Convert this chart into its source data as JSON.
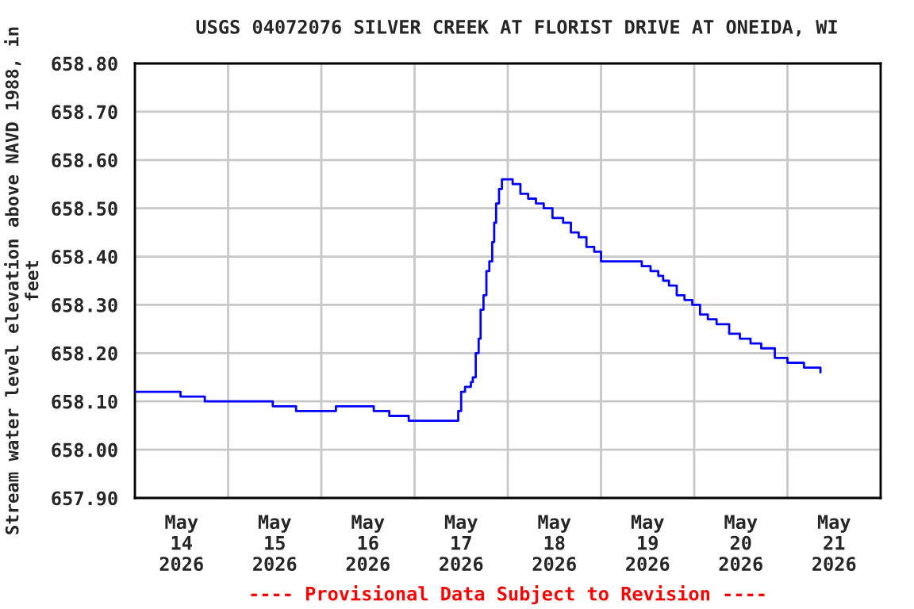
{
  "chart_data": {
    "type": "step",
    "title": "USGS 04072076 SILVER CREEK AT FLORIST DRIVE AT ONEIDA, WI",
    "ylabel": "Stream water level elevation above NAVD 1988, in feet",
    "annotations": [
      "---- Provisional Data Subject to Revision ----"
    ],
    "x": [
      "2026-05-14T00:00",
      "2026-05-14T11:15",
      "2026-05-14T11:45",
      "2026-05-14T17:45",
      "2026-05-14T18:00",
      "2026-05-15T10:30",
      "2026-05-15T11:30",
      "2026-05-15T17:15",
      "2026-05-15T17:30",
      "2026-05-16T03:30",
      "2026-05-16T03:45",
      "2026-05-16T13:15",
      "2026-05-16T13:30",
      "2026-05-16T17:15",
      "2026-05-16T17:30",
      "2026-05-16T22:15",
      "2026-05-16T22:30",
      "2026-05-17T11:00",
      "2026-05-17T11:15",
      "2026-05-17T12:00",
      "2026-05-17T13:00",
      "2026-05-17T14:30",
      "2026-05-17T15:00",
      "2026-05-17T15:45",
      "2026-05-17T16:30",
      "2026-05-17T17:00",
      "2026-05-17T17:45",
      "2026-05-17T18:30",
      "2026-05-17T19:15",
      "2026-05-17T20:00",
      "2026-05-17T20:30",
      "2026-05-17T21:00",
      "2026-05-17T21:45",
      "2026-05-17T22:30",
      "2026-05-18T00:15",
      "2026-05-18T01:15",
      "2026-05-18T03:15",
      "2026-05-18T05:15",
      "2026-05-18T07:15",
      "2026-05-18T09:15",
      "2026-05-18T11:30",
      "2026-05-18T14:15",
      "2026-05-18T16:15",
      "2026-05-18T18:15",
      "2026-05-18T20:15",
      "2026-05-18T22:15",
      "2026-05-19T00:00",
      "2026-05-19T09:15",
      "2026-05-19T10:30",
      "2026-05-19T12:45",
      "2026-05-19T14:45",
      "2026-05-19T16:00",
      "2026-05-19T17:30",
      "2026-05-19T19:30",
      "2026-05-19T21:30",
      "2026-05-19T23:30",
      "2026-05-20T01:30",
      "2026-05-20T03:30",
      "2026-05-20T05:45",
      "2026-05-20T09:00",
      "2026-05-20T11:45",
      "2026-05-20T14:30",
      "2026-05-20T17:15",
      "2026-05-20T20:45",
      "2026-05-21T00:00",
      "2026-05-21T04:15",
      "2026-05-21T08:15",
      "2026-05-21T08:30"
    ],
    "series": [
      {
        "color": "#0000ff",
        "values": [
          658.12,
          658.12,
          658.11,
          658.11,
          658.1,
          658.1,
          658.09,
          658.09,
          658.08,
          658.08,
          658.09,
          658.09,
          658.08,
          658.08,
          658.07,
          658.07,
          658.06,
          658.06,
          658.08,
          658.12,
          658.13,
          658.14,
          658.15,
          658.2,
          658.23,
          658.29,
          658.32,
          658.37,
          658.39,
          658.43,
          658.47,
          658.51,
          658.54,
          658.56,
          658.56,
          658.55,
          658.53,
          658.52,
          658.51,
          658.5,
          658.48,
          658.47,
          658.45,
          658.44,
          658.42,
          658.41,
          658.39,
          658.39,
          658.38,
          658.37,
          658.36,
          658.35,
          658.34,
          658.32,
          658.31,
          658.3,
          658.28,
          658.27,
          658.26,
          658.24,
          658.23,
          658.22,
          658.21,
          658.19,
          658.18,
          658.17,
          658.17,
          658.16
        ]
      }
    ],
    "xlim": [
      "2026-05-14T00:00",
      "2026-05-22T00:00"
    ],
    "xticks": [
      {
        "value": "2026-05-14T00:00",
        "label": null
      },
      {
        "value": "2026-05-14T12:00",
        "label": "May\n14\n2026"
      },
      {
        "value": "2026-05-15T00:00",
        "label": null
      },
      {
        "value": "2026-05-15T12:00",
        "label": "May\n15\n2026"
      },
      {
        "value": "2026-05-16T00:00",
        "label": null
      },
      {
        "value": "2026-05-16T12:00",
        "label": "May\n16\n2026"
      },
      {
        "value": "2026-05-17T00:00",
        "label": null
      },
      {
        "value": "2026-05-17T12:00",
        "label": "May\n17\n2026"
      },
      {
        "value": "2026-05-18T00:00",
        "label": null
      },
      {
        "value": "2026-05-18T12:00",
        "label": "May\n18\n2026"
      },
      {
        "value": "2026-05-19T00:00",
        "label": null
      },
      {
        "value": "2026-05-19T12:00",
        "label": "May\n19\n2026"
      },
      {
        "value": "2026-05-20T00:00",
        "label": null
      },
      {
        "value": "2026-05-20T12:00",
        "label": "May\n20\n2026"
      },
      {
        "value": "2026-05-21T00:00",
        "label": null
      },
      {
        "value": "2026-05-21T12:00",
        "label": "May\n21\n2026"
      },
      {
        "value": "2026-05-22T00:00",
        "label": null
      }
    ],
    "ylim": [
      657.9,
      658.8
    ],
    "yticks": [
      {
        "value": 657.9,
        "label": "657.90"
      },
      {
        "value": 658.0,
        "label": "658.00"
      },
      {
        "value": 658.1,
        "label": "658.10"
      },
      {
        "value": 658.2,
        "label": "658.20"
      },
      {
        "value": 658.3,
        "label": "658.30"
      },
      {
        "value": 658.4,
        "label": "658.40"
      },
      {
        "value": 658.5,
        "label": "658.50"
      },
      {
        "value": 658.6,
        "label": "658.60"
      },
      {
        "value": 658.7,
        "label": "658.70"
      },
      {
        "value": 658.8,
        "label": "658.80"
      }
    ],
    "grid": true,
    "legend": false
  }
}
